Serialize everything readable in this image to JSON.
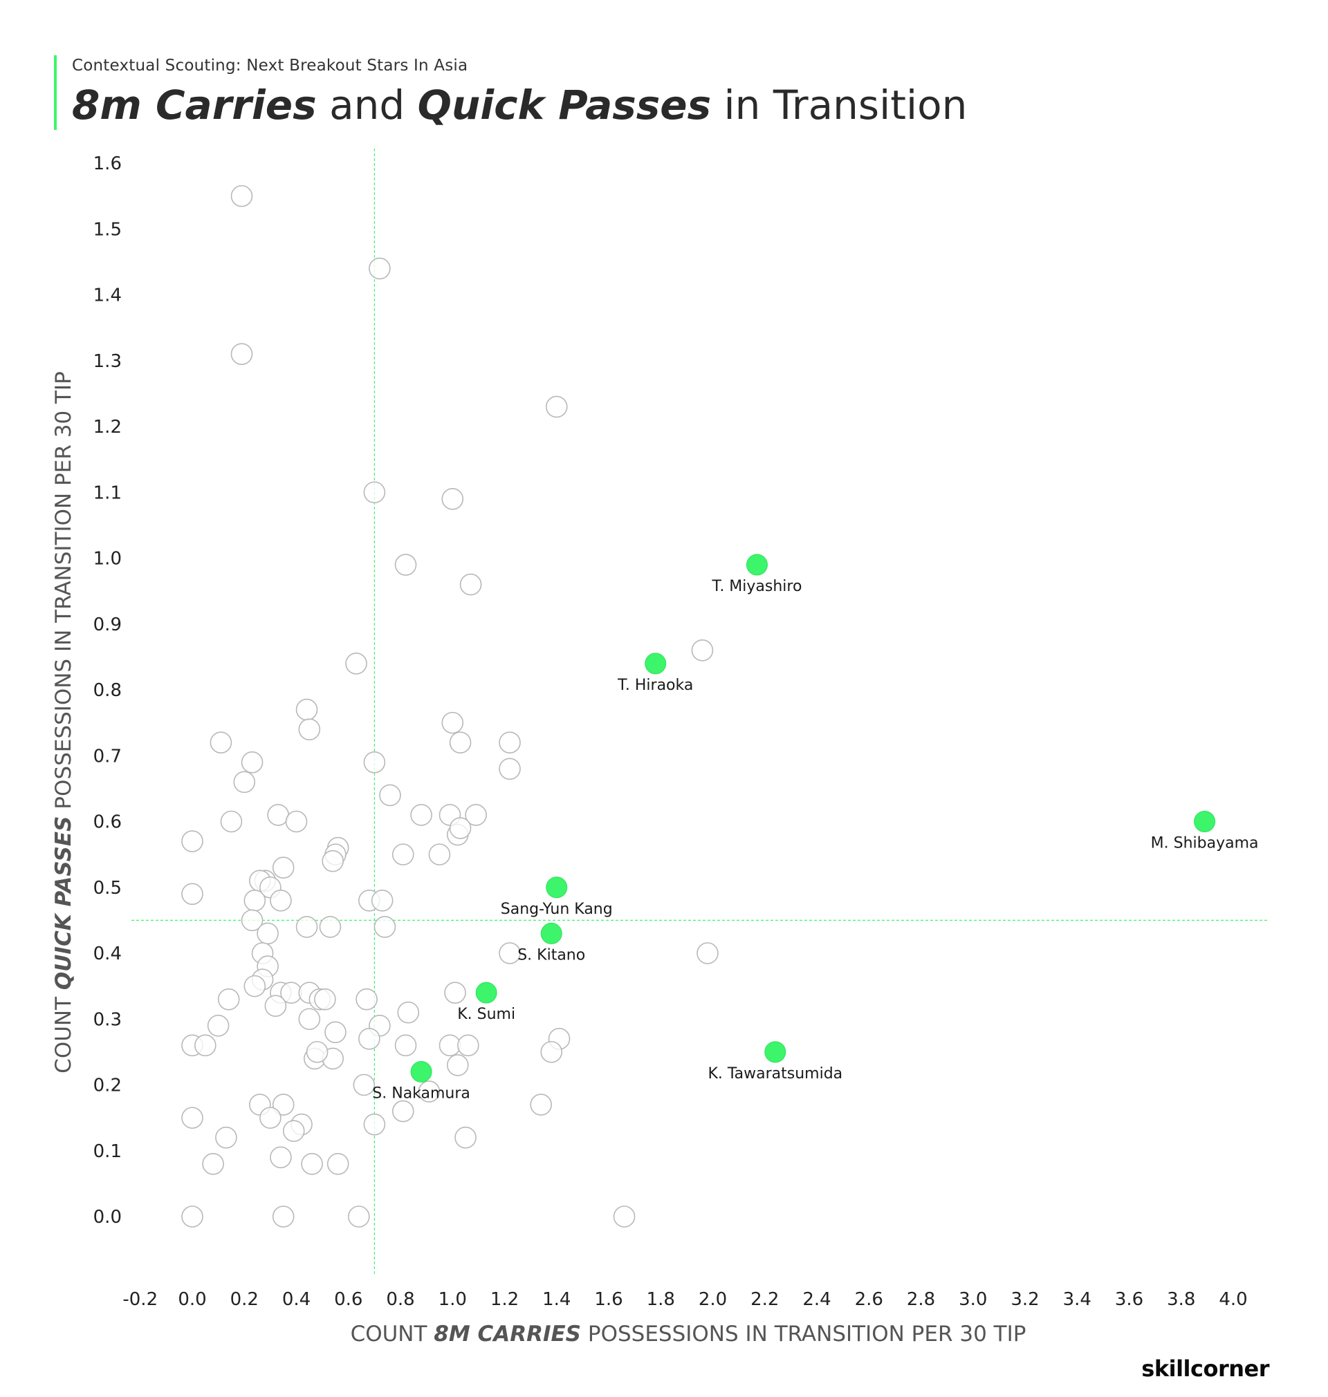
{
  "header": {
    "supertitle": "Contextual Scouting: Next Breakout Stars In Asia",
    "title_part1": "8m Carries",
    "title_part2": " and ",
    "title_part3": "Quick Passes",
    "title_part4": " in Transition"
  },
  "brand": "SKILLCORNER",
  "chart_data": {
    "type": "scatter",
    "title": "8m Carries and Quick Passes in Transition",
    "xlabel_prefix": "COUNT ",
    "xlabel_em": "8M CARRIES",
    "xlabel_suffix": " POSSESSIONS IN TRANSITION PER 30 TIP",
    "ylabel_prefix": "COUNT ",
    "ylabel_em": "QUICK PASSES",
    "ylabel_suffix": " POSSESSIONS IN TRANSITION  PER 30 TIP",
    "xlim": [
      -0.2,
      4.0
    ],
    "ylim": [
      0.0,
      1.6
    ],
    "x_ticks": [
      "-0.2",
      "0.0",
      "0.2",
      "0.4",
      "0.6",
      "0.8",
      "1.0",
      "1.2",
      "1.4",
      "1.6",
      "1.8",
      "2.0",
      "2.2",
      "2.4",
      "2.6",
      "2.8",
      "3.0",
      "3.2",
      "3.4",
      "3.6",
      "3.8",
      "4.0"
    ],
    "y_ticks": [
      "0.0",
      "0.1",
      "0.2",
      "0.3",
      "0.4",
      "0.5",
      "0.6",
      "0.7",
      "0.8",
      "0.9",
      "1.0",
      "1.1",
      "1.2",
      "1.3",
      "1.4",
      "1.5",
      "1.6"
    ],
    "reference_lines": {
      "x": 0.7,
      "y": 0.45
    },
    "colors": {
      "highlight": "#3cf56a",
      "other_fill": "#ffffff",
      "other_stroke": "#b8b8b8",
      "reference": "#3cf56a"
    },
    "highlighted": [
      {
        "name": "T. Miyashiro",
        "x": 2.17,
        "y": 0.99
      },
      {
        "name": "T. Hiraoka",
        "x": 1.78,
        "y": 0.84
      },
      {
        "name": "M. Shibayama",
        "x": 3.89,
        "y": 0.6
      },
      {
        "name": "Sang-Yun Kang",
        "x": 1.4,
        "y": 0.5
      },
      {
        "name": "S. Kitano",
        "x": 1.38,
        "y": 0.43
      },
      {
        "name": "K. Sumi",
        "x": 1.13,
        "y": 0.34
      },
      {
        "name": "K. Tawaratsumida",
        "x": 2.24,
        "y": 0.25
      },
      {
        "name": "S. Nakamura",
        "x": 0.88,
        "y": 0.22
      }
    ],
    "others": [
      [
        0.19,
        1.55
      ],
      [
        0.72,
        1.44
      ],
      [
        0.19,
        1.31
      ],
      [
        1.4,
        1.23
      ],
      [
        0.7,
        1.1
      ],
      [
        1.0,
        1.09
      ],
      [
        0.82,
        0.99
      ],
      [
        1.07,
        0.96
      ],
      [
        1.96,
        0.86
      ],
      [
        0.63,
        0.84
      ],
      [
        0.44,
        0.77
      ],
      [
        0.45,
        0.74
      ],
      [
        1.0,
        0.75
      ],
      [
        1.03,
        0.72
      ],
      [
        1.22,
        0.72
      ],
      [
        1.22,
        0.68
      ],
      [
        0.11,
        0.72
      ],
      [
        0.23,
        0.69
      ],
      [
        0.7,
        0.69
      ],
      [
        0.2,
        0.66
      ],
      [
        0.76,
        0.64
      ],
      [
        0.88,
        0.61
      ],
      [
        0.99,
        0.61
      ],
      [
        1.09,
        0.61
      ],
      [
        1.02,
        0.58
      ],
      [
        1.03,
        0.59
      ],
      [
        0.33,
        0.61
      ],
      [
        0.4,
        0.6
      ],
      [
        0.15,
        0.6
      ],
      [
        0.0,
        0.57
      ],
      [
        0.56,
        0.56
      ],
      [
        0.55,
        0.55
      ],
      [
        0.54,
        0.54
      ],
      [
        0.81,
        0.55
      ],
      [
        0.95,
        0.55
      ],
      [
        0.35,
        0.53
      ],
      [
        0.28,
        0.51
      ],
      [
        0.26,
        0.51
      ],
      [
        0.3,
        0.5
      ],
      [
        0.0,
        0.49
      ],
      [
        0.24,
        0.48
      ],
      [
        0.34,
        0.48
      ],
      [
        0.68,
        0.48
      ],
      [
        0.73,
        0.48
      ],
      [
        0.23,
        0.45
      ],
      [
        0.44,
        0.44
      ],
      [
        0.53,
        0.44
      ],
      [
        0.74,
        0.44
      ],
      [
        0.29,
        0.43
      ],
      [
        1.22,
        0.4
      ],
      [
        1.98,
        0.4
      ],
      [
        0.27,
        0.4
      ],
      [
        0.29,
        0.38
      ],
      [
        0.27,
        0.36
      ],
      [
        0.24,
        0.35
      ],
      [
        0.34,
        0.34
      ],
      [
        0.38,
        0.34
      ],
      [
        0.45,
        0.34
      ],
      [
        1.01,
        0.34
      ],
      [
        0.49,
        0.33
      ],
      [
        0.51,
        0.33
      ],
      [
        0.67,
        0.33
      ],
      [
        0.14,
        0.33
      ],
      [
        0.32,
        0.32
      ],
      [
        0.83,
        0.31
      ],
      [
        0.45,
        0.3
      ],
      [
        0.1,
        0.29
      ],
      [
        0.72,
        0.29
      ],
      [
        0.55,
        0.28
      ],
      [
        0.68,
        0.27
      ],
      [
        1.41,
        0.27
      ],
      [
        0.0,
        0.26
      ],
      [
        0.05,
        0.26
      ],
      [
        0.82,
        0.26
      ],
      [
        0.99,
        0.26
      ],
      [
        1.06,
        0.26
      ],
      [
        1.38,
        0.25
      ],
      [
        0.47,
        0.24
      ],
      [
        0.54,
        0.24
      ],
      [
        0.48,
        0.25
      ],
      [
        1.02,
        0.23
      ],
      [
        0.66,
        0.2
      ],
      [
        0.91,
        0.19
      ],
      [
        0.26,
        0.17
      ],
      [
        0.35,
        0.17
      ],
      [
        1.34,
        0.17
      ],
      [
        0.81,
        0.16
      ],
      [
        0.3,
        0.15
      ],
      [
        0.0,
        0.15
      ],
      [
        0.42,
        0.14
      ],
      [
        0.7,
        0.14
      ],
      [
        0.39,
        0.13
      ],
      [
        0.13,
        0.12
      ],
      [
        1.05,
        0.12
      ],
      [
        0.34,
        0.09
      ],
      [
        0.56,
        0.08
      ],
      [
        0.08,
        0.08
      ],
      [
        0.46,
        0.08
      ],
      [
        0.0,
        0.0
      ],
      [
        0.35,
        0.0
      ],
      [
        0.64,
        0.0
      ],
      [
        1.66,
        0.0
      ]
    ]
  }
}
